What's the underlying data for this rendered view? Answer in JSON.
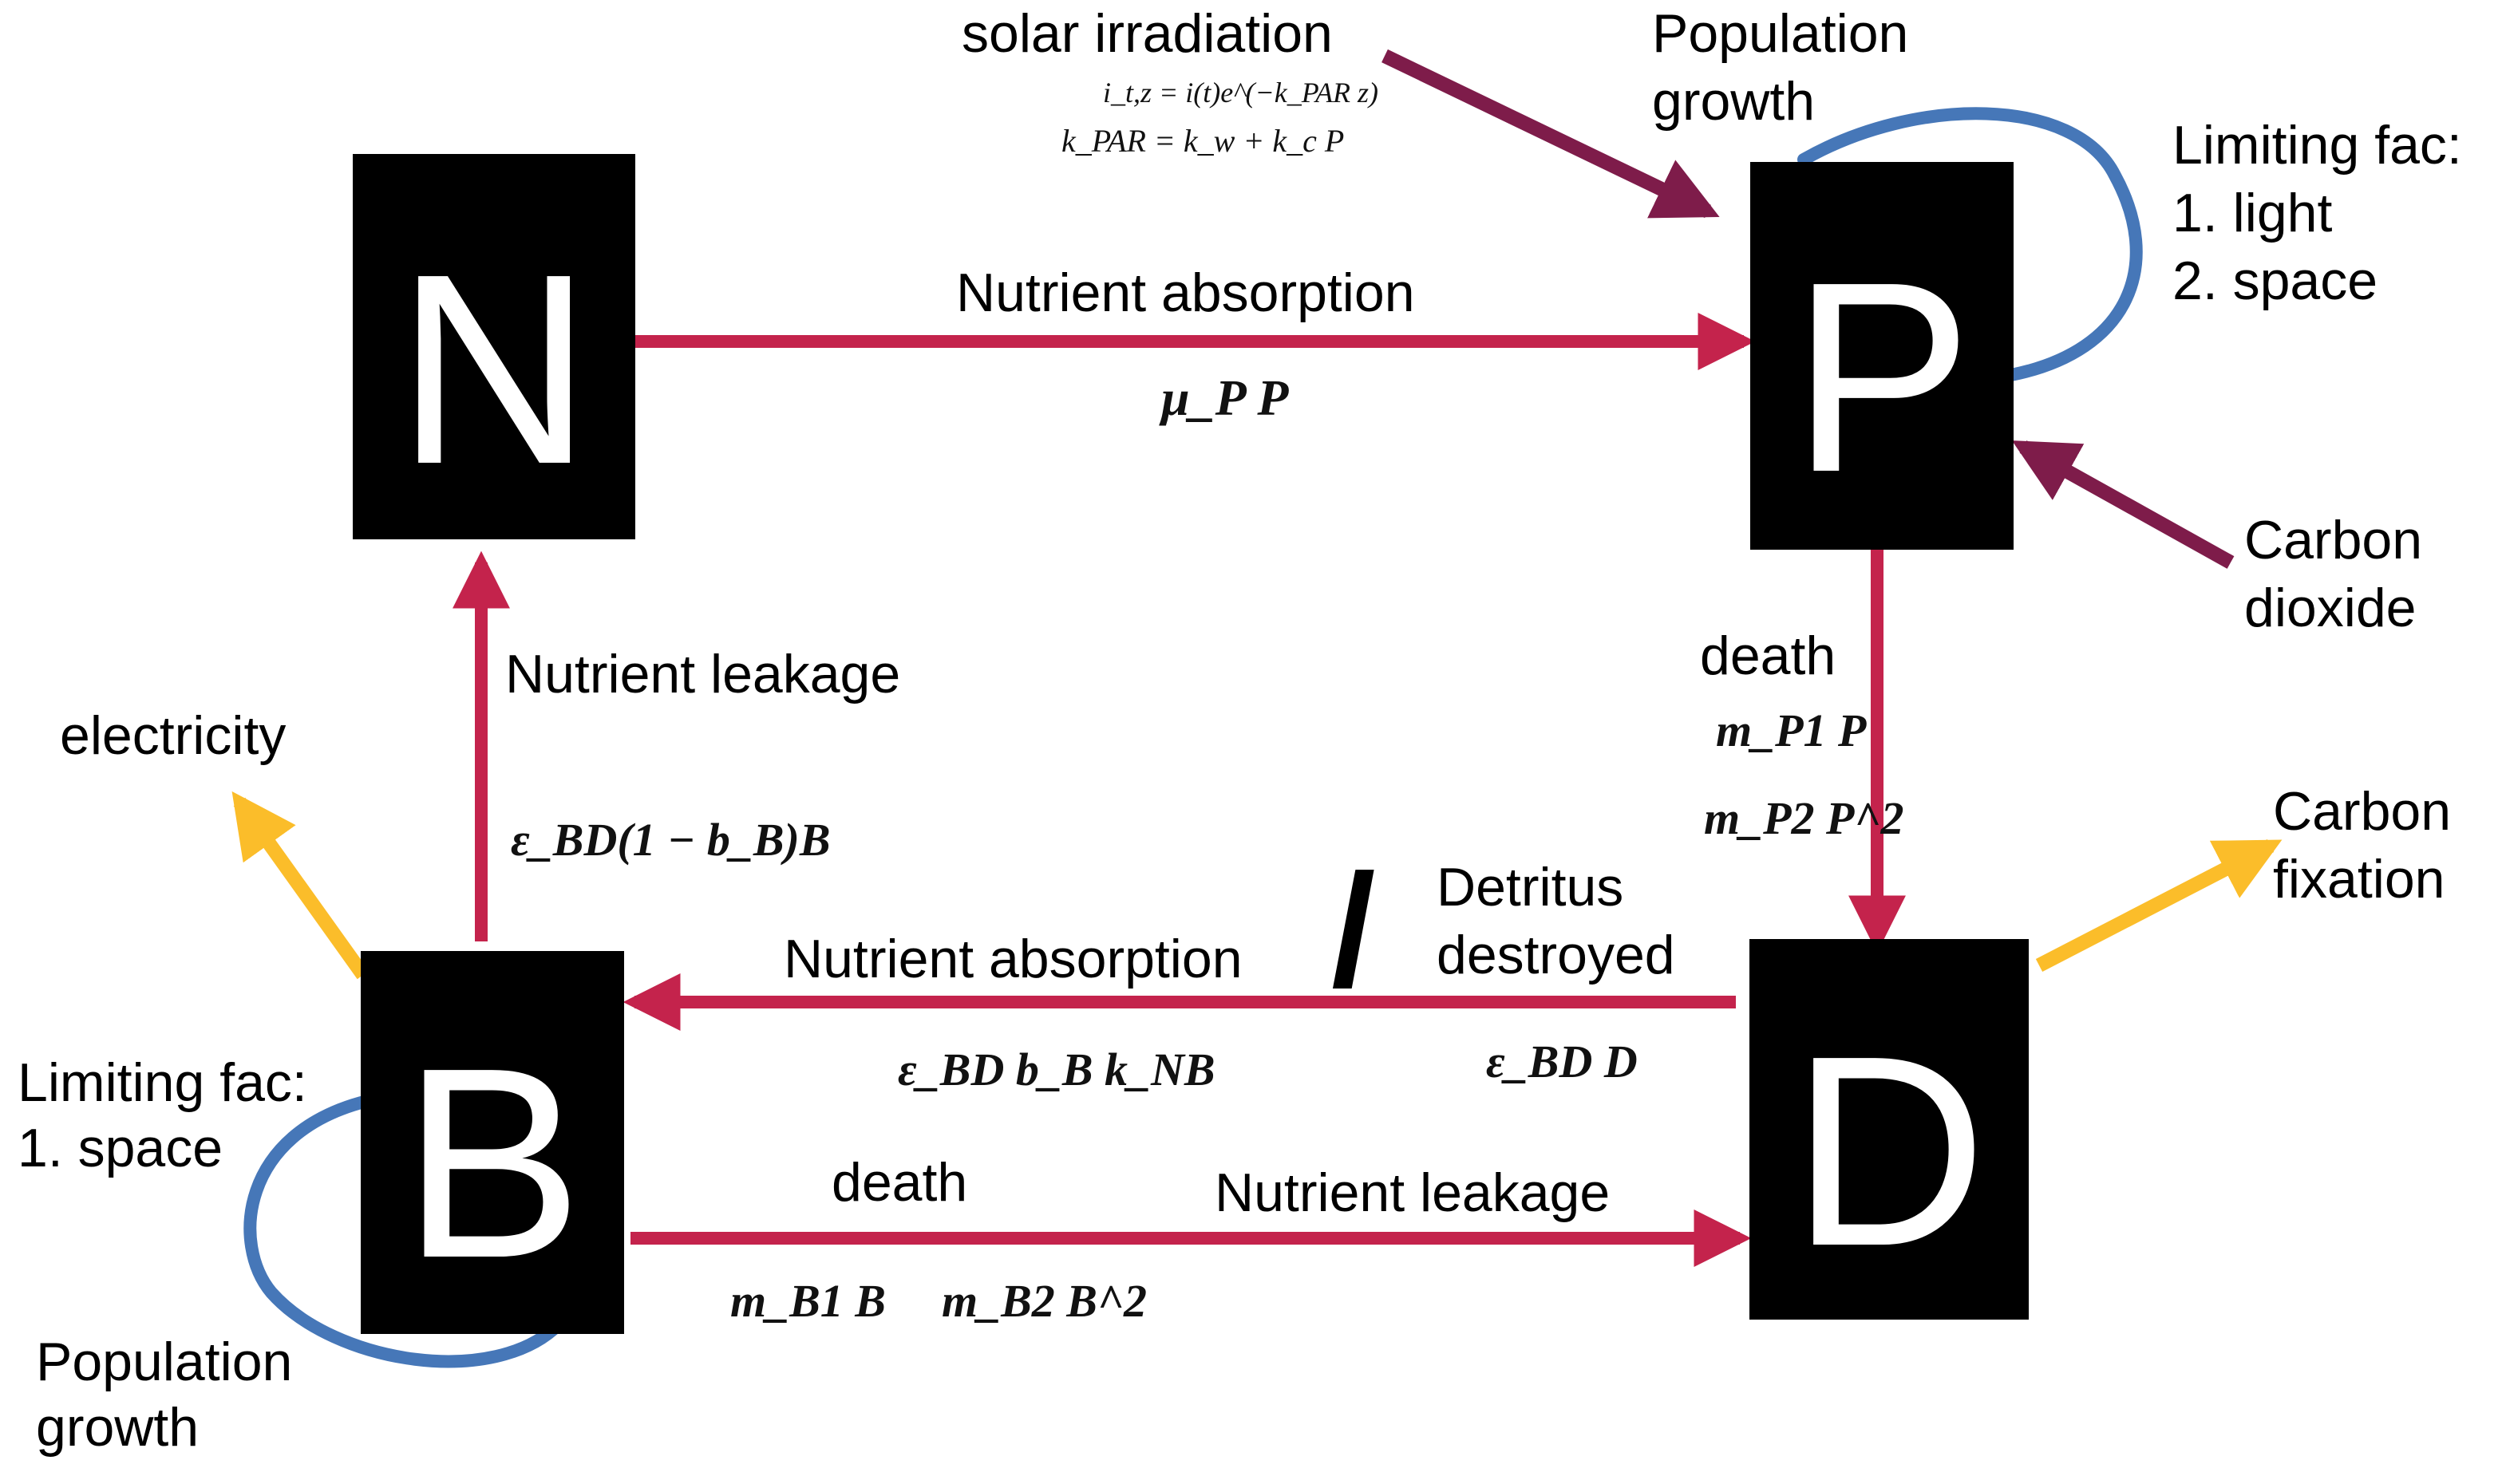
{
  "colors": {
    "flow": "#c4234c",
    "external": "#7e1c4a",
    "output": "#fbbd2a",
    "growth": "#4677b8",
    "node_fill": "#000000",
    "node_text": "#ffffff"
  },
  "nodes": {
    "N": {
      "letter": "N"
    },
    "P": {
      "letter": "P"
    },
    "B": {
      "letter": "B"
    },
    "D": {
      "letter": "D"
    }
  },
  "labels": {
    "solar_irradiation": "solar irradiation",
    "solar_eq1": "i_t,z = i(t)e^(−k_PAR z)",
    "solar_eq2": "k_PAR = k_w + k_c P",
    "p_growth_line1": "Population",
    "p_growth_line2": "growth",
    "p_limit_line1": "Limiting fac:",
    "p_limit_line2": "1. light",
    "p_limit_line3": "2. space",
    "nutrient_absorption_np": "Nutrient absorption",
    "mu_p": "μ_P P",
    "carbon_dioxide_line1": "Carbon",
    "carbon_dioxide_line2": "dioxide",
    "p_death": "death",
    "m_p1": "m_P1 P",
    "m_p2": "m_P2 P^2",
    "carbon_fixation_line1": "Carbon",
    "carbon_fixation_line2": "fixation",
    "nutrient_leakage_bn": "Nutrient leakage",
    "electricity": "electricity",
    "eps_bd_leak": "ε_BD(1 − b_B)B",
    "detritus_line1": "Detritus",
    "detritus_line2": "destroyed",
    "slash": "/",
    "nutrient_absorption_db": "Nutrient absorption",
    "eps_bd_b_knb": "ε_BD b_B k_NB",
    "eps_bd_d": "ε_BD D",
    "b_limit_line1": "Limiting fac:",
    "b_limit_line2": "1. space",
    "b_death": "death",
    "nutrient_leakage_bd": "Nutrient leakage",
    "m_b1": "m_B1 B",
    "m_b2": "m_B2 B^2",
    "b_growth_line1": "Population",
    "b_growth_line2": "growth"
  }
}
